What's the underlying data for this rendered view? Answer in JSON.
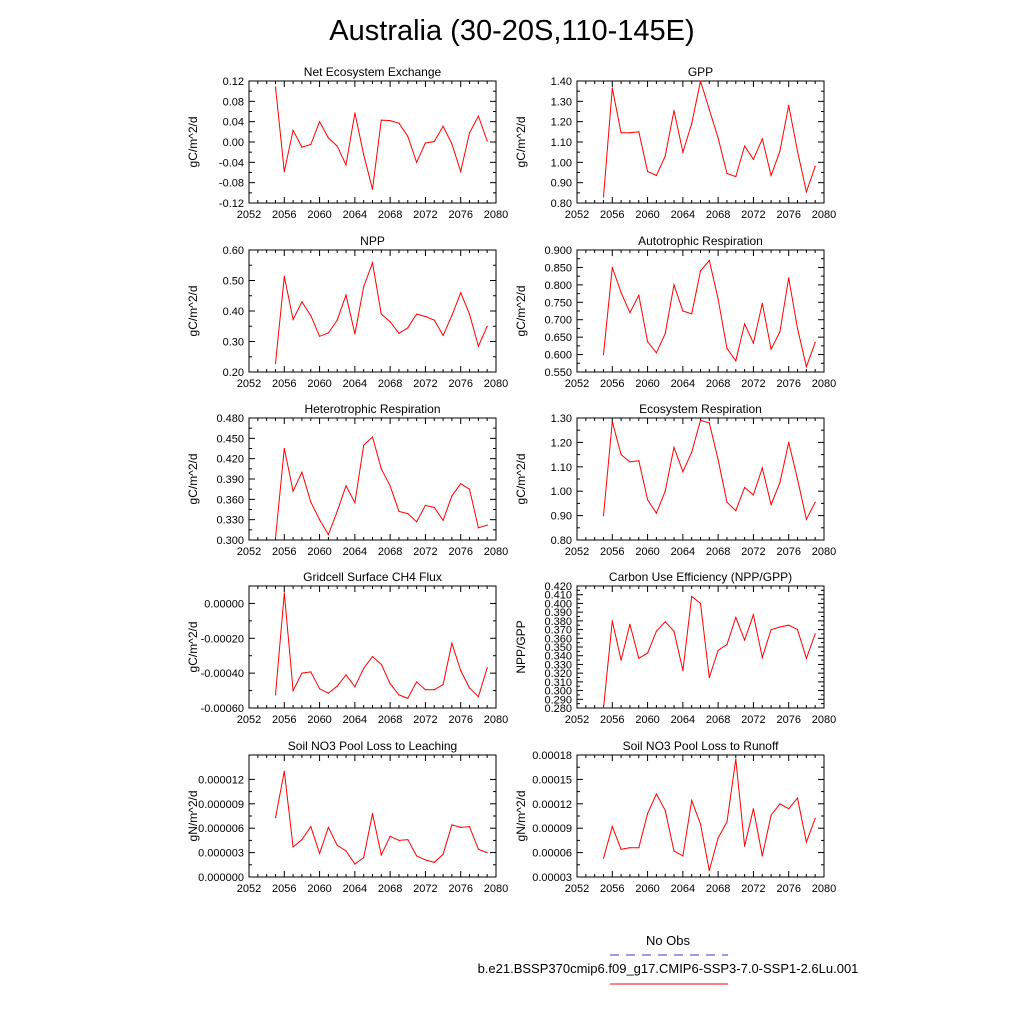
{
  "figure_title": "Australia (30-20S,110-145E)",
  "line_color": "#ff0000",
  "legend": {
    "obs_label": "No Obs",
    "obs_color": "#3333cc",
    "model_label": "b.e21.BSSP370cmip6.f09_g17.CMIP6-SSP3-7.0-SSP1-2.6Lu.001",
    "model_color": "#ff0000"
  },
  "chart_data": [
    {
      "type": "line",
      "title": "Net Ecosystem Exchange",
      "ylabel": "gC/m^2/d",
      "xlim": [
        2052,
        2080
      ],
      "xticks": [
        2052,
        2056,
        2060,
        2064,
        2068,
        2072,
        2076,
        2080
      ],
      "ylim": [
        -0.12,
        0.12
      ],
      "yticks": [
        "-0.12",
        "-0.08",
        "-0.04",
        "0.00",
        "0.04",
        "0.08",
        "0.12"
      ],
      "x": [
        2055,
        2056,
        2057,
        2058,
        2059,
        2060,
        2061,
        2062,
        2063,
        2064,
        2065,
        2066,
        2067,
        2068,
        2069,
        2070,
        2071,
        2072,
        2073,
        2074,
        2075,
        2076,
        2077,
        2078,
        2079
      ],
      "y": [
        0.108,
        -0.058,
        0.023,
        -0.01,
        -0.005,
        0.04,
        0.008,
        -0.008,
        -0.045,
        0.057,
        -0.025,
        -0.093,
        0.043,
        0.042,
        0.037,
        0.011,
        -0.04,
        -0.002,
        0.001,
        0.031,
        -0.004,
        -0.058,
        0.018,
        0.051,
        0.002
      ]
    },
    {
      "type": "line",
      "title": "GPP",
      "ylabel": "gC/m^2/d",
      "xlim": [
        2052,
        2080
      ],
      "xticks": [
        2052,
        2056,
        2060,
        2064,
        2068,
        2072,
        2076,
        2080
      ],
      "ylim": [
        0.8,
        1.4
      ],
      "yticks": [
        "0.80",
        "0.90",
        "1.00",
        "1.10",
        "1.20",
        "1.30",
        "1.40"
      ],
      "x": [
        2055,
        2056,
        2057,
        2058,
        2059,
        2060,
        2061,
        2062,
        2063,
        2064,
        2065,
        2066,
        2067,
        2068,
        2069,
        2070,
        2071,
        2072,
        2073,
        2074,
        2075,
        2076,
        2077,
        2078,
        2079
      ],
      "y": [
        0.83,
        1.365,
        1.145,
        1.145,
        1.15,
        0.955,
        0.935,
        1.03,
        1.255,
        1.05,
        1.19,
        1.4,
        1.26,
        1.12,
        0.945,
        0.93,
        1.08,
        1.015,
        1.115,
        0.935,
        1.055,
        1.28,
        1.055,
        0.855,
        0.98
      ]
    },
    {
      "type": "line",
      "title": "NPP",
      "ylabel": "gC/m^2/d",
      "xlim": [
        2052,
        2080
      ],
      "xticks": [
        2052,
        2056,
        2060,
        2064,
        2068,
        2072,
        2076,
        2080
      ],
      "ylim": [
        0.2,
        0.6
      ],
      "yticks": [
        "0.20",
        "0.30",
        "0.40",
        "0.50",
        "0.60"
      ],
      "x": [
        2055,
        2056,
        2057,
        2058,
        2059,
        2060,
        2061,
        2062,
        2063,
        2064,
        2065,
        2066,
        2067,
        2068,
        2069,
        2070,
        2071,
        2072,
        2073,
        2074,
        2075,
        2076,
        2077,
        2078,
        2079
      ],
      "y": [
        0.228,
        0.513,
        0.372,
        0.43,
        0.385,
        0.317,
        0.328,
        0.37,
        0.452,
        0.325,
        0.48,
        0.558,
        0.39,
        0.365,
        0.327,
        0.345,
        0.39,
        0.382,
        0.37,
        0.32,
        0.385,
        0.46,
        0.39,
        0.285,
        0.35
      ]
    },
    {
      "type": "line",
      "title": "Autotrophic Respiration",
      "ylabel": "gC/m^2/d",
      "xlim": [
        2052,
        2080
      ],
      "xticks": [
        2052,
        2056,
        2060,
        2064,
        2068,
        2072,
        2076,
        2080
      ],
      "ylim": [
        0.55,
        0.9
      ],
      "yticks": [
        "0.550",
        "0.600",
        "0.650",
        "0.700",
        "0.750",
        "0.800",
        "0.850",
        "0.900"
      ],
      "x": [
        2055,
        2056,
        2057,
        2058,
        2059,
        2060,
        2061,
        2062,
        2063,
        2064,
        2065,
        2066,
        2067,
        2068,
        2069,
        2070,
        2071,
        2072,
        2073,
        2074,
        2075,
        2076,
        2077,
        2078,
        2079
      ],
      "y": [
        0.6,
        0.85,
        0.778,
        0.72,
        0.77,
        0.637,
        0.605,
        0.66,
        0.8,
        0.725,
        0.717,
        0.84,
        0.87,
        0.76,
        0.617,
        0.582,
        0.688,
        0.633,
        0.747,
        0.615,
        0.665,
        0.82,
        0.675,
        0.565,
        0.635
      ]
    },
    {
      "type": "line",
      "title": "Heterotrophic Respiration",
      "ylabel": "gC/m^2/d",
      "xlim": [
        2052,
        2080
      ],
      "xticks": [
        2052,
        2056,
        2060,
        2064,
        2068,
        2072,
        2076,
        2080
      ],
      "ylim": [
        0.3,
        0.48
      ],
      "yticks": [
        "0.300",
        "0.330",
        "0.360",
        "0.390",
        "0.420",
        "0.450",
        "0.480"
      ],
      "x": [
        2055,
        2056,
        2057,
        2058,
        2059,
        2060,
        2061,
        2062,
        2063,
        2064,
        2065,
        2066,
        2067,
        2068,
        2069,
        2070,
        2071,
        2072,
        2073,
        2074,
        2075,
        2076,
        2077,
        2078,
        2079
      ],
      "y": [
        0.303,
        0.435,
        0.372,
        0.4,
        0.356,
        0.33,
        0.308,
        0.342,
        0.38,
        0.355,
        0.44,
        0.452,
        0.405,
        0.38,
        0.342,
        0.339,
        0.327,
        0.351,
        0.348,
        0.329,
        0.365,
        0.383,
        0.375,
        0.318,
        0.322
      ]
    },
    {
      "type": "line",
      "title": "Ecosystem Respiration",
      "ylabel": "gC/m^2/d",
      "xlim": [
        2052,
        2080
      ],
      "xticks": [
        2052,
        2056,
        2060,
        2064,
        2068,
        2072,
        2076,
        2080
      ],
      "ylim": [
        0.8,
        1.3
      ],
      "yticks": [
        "0.80",
        "0.90",
        "1.00",
        "1.10",
        "1.20",
        "1.30"
      ],
      "x": [
        2055,
        2056,
        2057,
        2058,
        2059,
        2060,
        2061,
        2062,
        2063,
        2064,
        2065,
        2066,
        2067,
        2068,
        2069,
        2070,
        2071,
        2072,
        2073,
        2074,
        2075,
        2076,
        2077,
        2078,
        2079
      ],
      "y": [
        0.9,
        1.285,
        1.15,
        1.12,
        1.125,
        0.965,
        0.91,
        1.0,
        1.18,
        1.08,
        1.16,
        1.29,
        1.28,
        1.13,
        0.955,
        0.92,
        1.015,
        0.985,
        1.095,
        0.945,
        1.035,
        1.2,
        1.05,
        0.885,
        0.955
      ]
    },
    {
      "type": "line",
      "title": "Gridcell Surface CH4 Flux",
      "ylabel": "gC/m^2/d",
      "xlim": [
        2052,
        2080
      ],
      "xticks": [
        2052,
        2056,
        2060,
        2064,
        2068,
        2072,
        2076,
        2080
      ],
      "ylim": [
        -0.0006,
        0.0001
      ],
      "yticks": [
        "-0.00060",
        "-0.00040",
        "-0.00020",
        "0.00000"
      ],
      "ytickvals": [
        -0.0006,
        -0.0004,
        -0.0002,
        0.0
      ],
      "x": [
        2055,
        2056,
        2057,
        2058,
        2059,
        2060,
        2061,
        2062,
        2063,
        2064,
        2065,
        2066,
        2067,
        2068,
        2069,
        2070,
        2071,
        2072,
        2073,
        2074,
        2075,
        2076,
        2077,
        2078,
        2079
      ],
      "y": [
        -0.000525,
        6e-05,
        -0.0005,
        -0.0004,
        -0.000393,
        -0.00049,
        -0.000515,
        -0.000475,
        -0.00041,
        -0.000478,
        -0.000372,
        -0.000305,
        -0.00035,
        -0.00046,
        -0.000525,
        -0.000545,
        -0.00045,
        -0.000495,
        -0.000495,
        -0.000465,
        -0.000228,
        -0.000385,
        -0.000485,
        -0.000535,
        -0.00037
      ]
    },
    {
      "type": "line",
      "title": "Carbon Use Efficiency (NPP/GPP)",
      "ylabel": "NPP/GPP",
      "xlim": [
        2052,
        2080
      ],
      "xticks": [
        2052,
        2056,
        2060,
        2064,
        2068,
        2072,
        2076,
        2080
      ],
      "ylim": [
        0.28,
        0.42
      ],
      "yticks": [
        "0.280",
        "0.290",
        "0.300",
        "0.310",
        "0.320",
        "0.330",
        "0.340",
        "0.350",
        "0.360",
        "0.370",
        "0.380",
        "0.390",
        "0.400",
        "0.410",
        "0.420"
      ],
      "x": [
        2055,
        2056,
        2057,
        2058,
        2059,
        2060,
        2061,
        2062,
        2063,
        2064,
        2065,
        2066,
        2067,
        2068,
        2069,
        2070,
        2071,
        2072,
        2073,
        2074,
        2075,
        2076,
        2077,
        2078,
        2079
      ],
      "y": [
        0.28,
        0.38,
        0.335,
        0.376,
        0.337,
        0.343,
        0.368,
        0.379,
        0.368,
        0.323,
        0.408,
        0.4,
        0.315,
        0.346,
        0.353,
        0.384,
        0.358,
        0.387,
        0.338,
        0.37,
        0.373,
        0.375,
        0.37,
        0.337,
        0.365
      ]
    },
    {
      "type": "line",
      "title": "Soil NO3 Pool Loss to Leaching",
      "ylabel": "gN/m^2/d",
      "xlim": [
        2052,
        2080
      ],
      "xticks": [
        2052,
        2056,
        2060,
        2064,
        2068,
        2072,
        2076,
        2080
      ],
      "ylim": [
        0.0,
        1.5e-05
      ],
      "yticks": [
        "0.000000",
        "0.000003",
        "0.000006",
        "0.000009",
        "0.000012"
      ],
      "ytickvals": [
        0.0,
        3e-06,
        6e-06,
        9e-06,
        1.2e-05
      ],
      "x": [
        2055,
        2056,
        2057,
        2058,
        2059,
        2060,
        2061,
        2062,
        2063,
        2064,
        2065,
        2066,
        2067,
        2068,
        2069,
        2070,
        2071,
        2072,
        2073,
        2074,
        2075,
        2076,
        2077,
        2078,
        2079
      ],
      "y": [
        7.3e-06,
        1.3e-05,
        3.7e-06,
        4.6e-06,
        6.2e-06,
        2.9e-06,
        6.1e-06,
        3.9e-06,
        3.2e-06,
        1.6e-06,
        2.4e-06,
        7.8e-06,
        2.7e-06,
        5e-06,
        4.5e-06,
        4.6e-06,
        2.6e-06,
        2.1e-06,
        1.8e-06,
        2.8e-06,
        6.4e-06,
        6.1e-06,
        6.2e-06,
        3.4e-06,
        3e-06
      ]
    },
    {
      "type": "line",
      "title": "Soil NO3 Pool Loss to Runoff",
      "ylabel": "gN/m^2/d",
      "xlim": [
        2052,
        2080
      ],
      "xticks": [
        2052,
        2056,
        2060,
        2064,
        2068,
        2072,
        2076,
        2080
      ],
      "ylim": [
        3e-05,
        0.00018
      ],
      "yticks": [
        "0.00003",
        "0.00006",
        "0.00009",
        "0.00012",
        "0.00015",
        "0.00018"
      ],
      "x": [
        2055,
        2056,
        2057,
        2058,
        2059,
        2060,
        2061,
        2062,
        2063,
        2064,
        2065,
        2066,
        2067,
        2068,
        2069,
        2070,
        2071,
        2072,
        2073,
        2074,
        2075,
        2076,
        2077,
        2078,
        2079
      ],
      "y": [
        5.3e-05,
        9.2e-05,
        6.4e-05,
        6.6e-05,
        6.6e-05,
        0.000108,
        0.000132,
        0.000112,
        6.2e-05,
        5.6e-05,
        0.000124,
        9.5e-05,
        3.8e-05,
        7.8e-05,
        9.8e-05,
        0.000175,
        6.8e-05,
        0.000114,
        5.6e-05,
        0.000106,
        0.00012,
        0.000114,
        0.000127,
        7.3e-05,
        0.000102
      ]
    }
  ]
}
